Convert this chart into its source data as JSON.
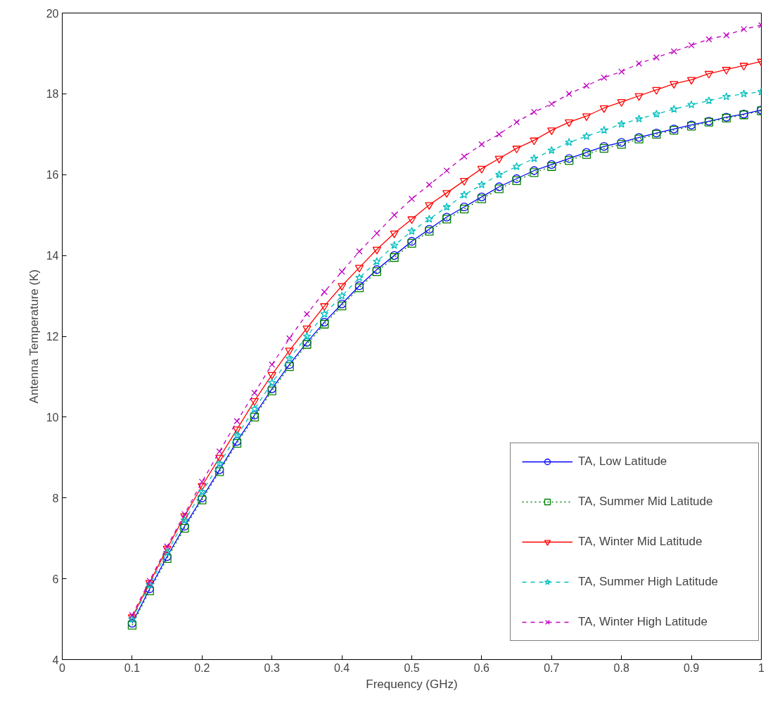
{
  "chart_data": {
    "type": "line",
    "xlabel": "Frequency (GHz)",
    "ylabel": "Antenna Temperature (K)",
    "x": [
      0.1,
      0.125,
      0.15,
      0.175,
      0.2,
      0.225,
      0.25,
      0.275,
      0.3,
      0.325,
      0.35,
      0.375,
      0.4,
      0.425,
      0.45,
      0.475,
      0.5,
      0.525,
      0.55,
      0.575,
      0.6,
      0.625,
      0.65,
      0.675,
      0.7,
      0.725,
      0.75,
      0.775,
      0.8,
      0.825,
      0.85,
      0.875,
      0.9,
      0.925,
      0.95,
      0.975,
      1.0
    ],
    "series": [
      {
        "name": "TA, Low Latitude",
        "color": "#0000ff",
        "marker": "circle",
        "line_style": "solid",
        "values": [
          4.9,
          5.75,
          6.55,
          7.3,
          8.0,
          8.7,
          9.4,
          10.05,
          10.7,
          11.3,
          11.85,
          12.35,
          12.8,
          13.25,
          13.65,
          14.0,
          14.35,
          14.65,
          14.95,
          15.2,
          15.45,
          15.7,
          15.9,
          16.1,
          16.25,
          16.4,
          16.55,
          16.7,
          16.8,
          16.92,
          17.03,
          17.13,
          17.23,
          17.32,
          17.42,
          17.5,
          17.6
        ]
      },
      {
        "name": "TA, Summer Mid Latitude",
        "color": "#008000",
        "marker": "square",
        "line_style": "dotted",
        "values": [
          4.85,
          5.7,
          6.5,
          7.25,
          7.95,
          8.65,
          9.35,
          10.0,
          10.65,
          11.25,
          11.8,
          12.3,
          12.75,
          13.2,
          13.6,
          13.95,
          14.3,
          14.6,
          14.9,
          15.15,
          15.4,
          15.65,
          15.85,
          16.05,
          16.2,
          16.35,
          16.5,
          16.65,
          16.75,
          16.88,
          17.0,
          17.1,
          17.2,
          17.3,
          17.4,
          17.48,
          17.58
        ]
      },
      {
        "name": "TA, Winter Mid Latitude",
        "color": "#ff0000",
        "marker": "triangle",
        "line_style": "solid",
        "values": [
          5.05,
          5.9,
          6.75,
          7.55,
          8.3,
          9.0,
          9.7,
          10.4,
          11.05,
          11.65,
          12.2,
          12.75,
          13.25,
          13.7,
          14.15,
          14.55,
          14.9,
          15.25,
          15.55,
          15.85,
          16.15,
          16.4,
          16.65,
          16.85,
          17.1,
          17.3,
          17.45,
          17.65,
          17.8,
          17.95,
          18.1,
          18.25,
          18.35,
          18.5,
          18.6,
          18.7,
          18.8
        ]
      },
      {
        "name": "TA, Summer High Latitude",
        "color": "#00bfbf",
        "marker": "star",
        "line_style": "dashed",
        "values": [
          5.0,
          5.85,
          6.65,
          7.45,
          8.15,
          8.85,
          9.55,
          10.2,
          10.85,
          11.45,
          12.0,
          12.55,
          13.0,
          13.45,
          13.85,
          14.25,
          14.6,
          14.9,
          15.2,
          15.5,
          15.75,
          16.0,
          16.2,
          16.4,
          16.6,
          16.8,
          16.95,
          17.1,
          17.25,
          17.38,
          17.5,
          17.62,
          17.73,
          17.83,
          17.93,
          18.0,
          18.05
        ]
      },
      {
        "name": "TA, Winter High Latitude",
        "color": "#bf00bf",
        "marker": "cross",
        "line_style": "dashed",
        "values": [
          5.1,
          5.95,
          6.8,
          7.6,
          8.4,
          9.15,
          9.9,
          10.6,
          11.3,
          11.95,
          12.55,
          13.1,
          13.6,
          14.1,
          14.55,
          15.0,
          15.4,
          15.75,
          16.1,
          16.45,
          16.75,
          17.0,
          17.3,
          17.55,
          17.75,
          18.0,
          18.2,
          18.4,
          18.55,
          18.75,
          18.9,
          19.05,
          19.2,
          19.35,
          19.45,
          19.6,
          19.7
        ]
      }
    ],
    "xlim": [
      0,
      1
    ],
    "ylim": [
      4,
      20
    ],
    "xticks": [
      0,
      0.1,
      0.2,
      0.3,
      0.4,
      0.5,
      0.6,
      0.7,
      0.8,
      0.9,
      1
    ],
    "yticks": [
      4,
      6,
      8,
      10,
      12,
      14,
      16,
      18,
      20
    ],
    "grid": false,
    "legend": "bottom right"
  }
}
